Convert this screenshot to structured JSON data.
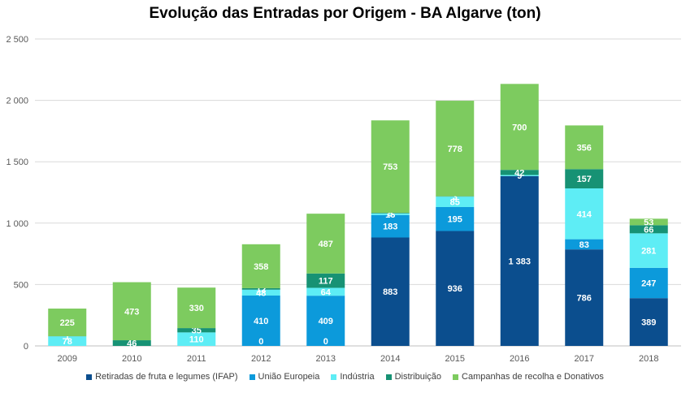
{
  "chart_data": {
    "type": "bar",
    "stacked": true,
    "title": "Evolução das Entradas por Origem - BA Algarve (ton)",
    "categories": [
      "2009",
      "2010",
      "2011",
      "2012",
      "2013",
      "2014",
      "2015",
      "2016",
      "2017",
      "2018"
    ],
    "y_ticks": [
      "0",
      "500",
      "1 000",
      "1 500",
      "2 000",
      "2 500"
    ],
    "ylim": [
      0,
      2500
    ],
    "grid": true,
    "legend_position": "bottom",
    "series": [
      {
        "name": "Retiradas de fruta e legumes (IFAP)",
        "color": "#0B4E8E",
        "values": [
          0,
          0,
          0,
          0,
          0,
          883,
          936,
          1383,
          786,
          389
        ],
        "labels": [
          "",
          "",
          "",
          "",
          "",
          "883",
          "936",
          "1 383",
          "786",
          "389"
        ]
      },
      {
        "name": "União Europeia",
        "color": "#0C9ADB",
        "values": [
          0,
          0,
          0,
          410,
          409,
          183,
          195,
          0,
          83,
          247
        ],
        "labels": [
          "",
          "",
          "",
          "410",
          "409",
          "183",
          "195",
          "",
          "83",
          "247"
        ]
      },
      {
        "name": "Indústria",
        "color": "#5EEDF5",
        "values": [
          78,
          0,
          110,
          48,
          64,
          13,
          85,
          9,
          414,
          281
        ],
        "labels": [
          "78",
          "0",
          "110",
          "48",
          "64",
          "13",
          "85",
          "9",
          "414",
          "281"
        ]
      },
      {
        "name": "Distribuição",
        "color": "#179274",
        "values": [
          1,
          46,
          35,
          12,
          117,
          5,
          3,
          42,
          157,
          66
        ],
        "labels": [
          "1",
          "46",
          "35",
          "12",
          "117",
          "5",
          "3",
          "42",
          "157",
          "66"
        ]
      },
      {
        "name": "Campanhas de recolha e Donativos",
        "color": "#7DCB5F",
        "values": [
          225,
          473,
          330,
          358,
          487,
          753,
          778,
          700,
          356,
          53
        ],
        "labels": [
          "225",
          "473",
          "330",
          "358",
          "487",
          "753",
          "778",
          "700",
          "356",
          "53"
        ]
      }
    ],
    "extra_zero_labels": [
      "0",
      "0"
    ]
  }
}
